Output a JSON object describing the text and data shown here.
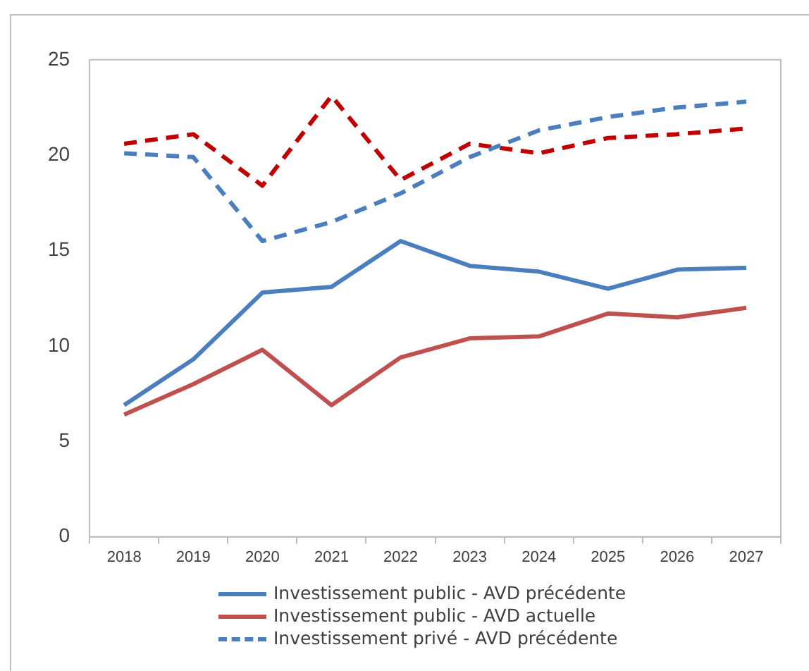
{
  "chart_data": {
    "type": "line",
    "categories": [
      "2018",
      "2019",
      "2020",
      "2021",
      "2022",
      "2023",
      "2024",
      "2025",
      "2026",
      "2027"
    ],
    "series": [
      {
        "name": "Investissement public - AVD précédente",
        "color": "#4a7ebf",
        "line_style": "solid",
        "values": [
          6.9,
          9.3,
          12.8,
          13.1,
          15.5,
          14.2,
          13.9,
          13.0,
          14.0,
          14.1
        ]
      },
      {
        "name": "Investissement public - AVD actuelle",
        "color": "#c0504d",
        "line_style": "solid",
        "values": [
          6.4,
          8.0,
          9.8,
          6.9,
          9.4,
          10.4,
          10.5,
          11.7,
          11.5,
          12.0
        ]
      },
      {
        "name": "Investissement privé - AVD précédente",
        "color": "#4a7ebf",
        "line_style": "dashed",
        "values": [
          20.1,
          19.9,
          15.5,
          16.5,
          18.0,
          19.9,
          21.3,
          22.0,
          22.5,
          22.8
        ]
      },
      {
        "color": "#c00000",
        "line_style": "dashed",
        "values": [
          20.6,
          21.1,
          18.4,
          23.1,
          18.7,
          20.6,
          20.1,
          20.9,
          21.1,
          21.4
        ]
      }
    ],
    "ylim": [
      0,
      25
    ],
    "yticks": [
      0,
      5,
      10,
      15,
      20,
      25
    ],
    "grid": false,
    "legend": "bottom",
    "marker": "none"
  }
}
